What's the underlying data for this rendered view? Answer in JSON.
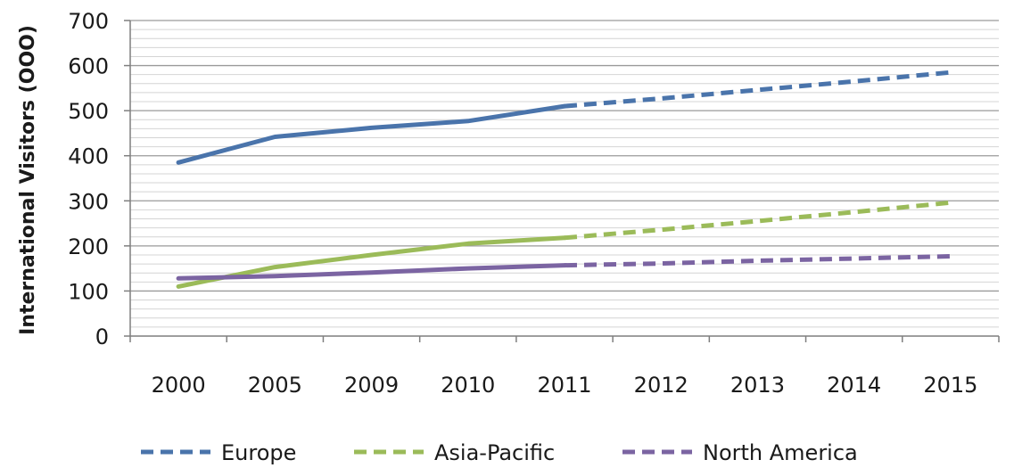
{
  "chart_data": {
    "type": "line",
    "title": "",
    "xlabel": "",
    "ylabel": "International Visitors (OOO)",
    "ylim": [
      0,
      700
    ],
    "yticks": [
      0,
      100,
      200,
      300,
      400,
      500,
      600,
      700
    ],
    "y_minor_step": 20,
    "grid": true,
    "legend_position": "bottom",
    "categories": [
      "2000",
      "2005",
      "2009",
      "2010",
      "2011",
      "2012",
      "2013",
      "2014",
      "2015"
    ],
    "forecast_start_category": "2011",
    "series": [
      {
        "name": "Europe",
        "color": "#4a74ab",
        "values": [
          385,
          442,
          462,
          477,
          510,
          527,
          546,
          565,
          585
        ]
      },
      {
        "name": "Asia-Pacific",
        "color": "#9bbb59",
        "values": [
          110,
          153,
          180,
          205,
          218,
          236,
          255,
          275,
          296
        ]
      },
      {
        "name": "North America",
        "color": "#7b64a2",
        "values": [
          128,
          133,
          141,
          150,
          157,
          161,
          167,
          172,
          177
        ]
      }
    ]
  }
}
